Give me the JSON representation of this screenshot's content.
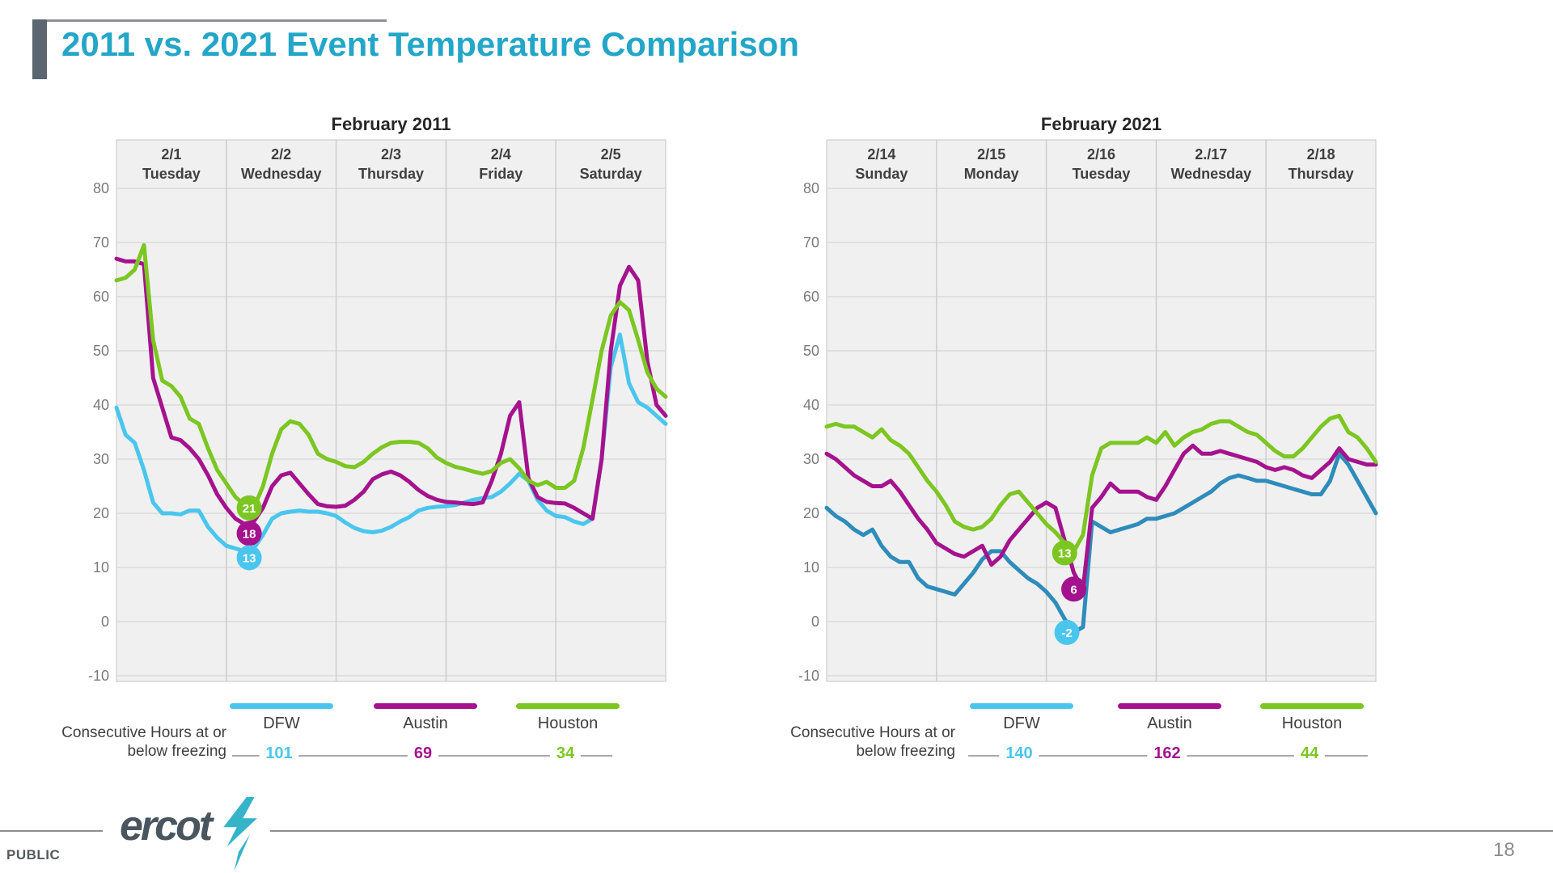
{
  "slide": {
    "title": "2011 vs. 2021 Event Temperature Comparison",
    "footer": {
      "classification": "PUBLIC",
      "page_number": "18",
      "logo_text": "ercot",
      "logo_icon": "lightning-bolt-icon"
    }
  },
  "colors": {
    "title_teal": "#23A6C8",
    "accent_bar_gray": "#5B6670",
    "footer_line_gray": "#8A9096",
    "dfw_cyan": "#4AC6EE",
    "austin_magenta": "#A5128E",
    "houston_green": "#7CC621",
    "dfw_2021_line_blue": "#2E8CBB",
    "plot_bg": "#F0F0F0",
    "grid": "#DBDBDB",
    "day_separator": "#CDCDCD",
    "plot_border": "#C4C4C4",
    "axis_text": "#7A7A7A",
    "label_text": "#3F3F3F"
  },
  "chart_data": [
    {
      "type": "line",
      "title": "February 2011",
      "ylim": [
        -10,
        89
      ],
      "yticks": [
        80,
        70,
        60,
        50,
        40,
        30,
        20,
        10,
        0,
        -10
      ],
      "x_span_hours": 120,
      "x_step_hours": 2,
      "grid": true,
      "days": [
        {
          "date": "2/1",
          "weekday": "Tuesday"
        },
        {
          "date": "2/2",
          "weekday": "Wednesday"
        },
        {
          "date": "2/3",
          "weekday": "Thursday"
        },
        {
          "date": "2/4",
          "weekday": "Friday"
        },
        {
          "date": "2/5",
          "weekday": "Saturday"
        }
      ],
      "series": [
        {
          "name": "DFW",
          "color": "#4AC6EE",
          "values": [
            39.5,
            34.5,
            33,
            28,
            22,
            20,
            20,
            19.8,
            20.5,
            20.5,
            17.5,
            15.5,
            14,
            13.5,
            13,
            13.5,
            16,
            19,
            20,
            20.3,
            20.5,
            20.3,
            20.3,
            20,
            19.5,
            18.3,
            17.3,
            16.7,
            16.5,
            16.8,
            17.5,
            18.5,
            19.3,
            20.5,
            21,
            21.2,
            21.3,
            21.5,
            22,
            22.5,
            22.8,
            23,
            24,
            25.5,
            27.3,
            26,
            22.5,
            20.5,
            19.5,
            19.3,
            18.5,
            18,
            19,
            30,
            47,
            53,
            44,
            40.5,
            39.5,
            38,
            36.5
          ]
        },
        {
          "name": "Austin",
          "color": "#A5128E",
          "values": [
            67,
            66.5,
            66.5,
            66,
            45,
            39.5,
            34,
            33.5,
            32,
            30,
            27,
            23.5,
            21,
            19,
            18,
            18.5,
            21,
            25,
            27,
            27.5,
            25.5,
            23.5,
            21.7,
            21.3,
            21.2,
            21.4,
            22.5,
            24,
            26.3,
            27.2,
            27.7,
            27,
            25.8,
            24.3,
            23.2,
            22.5,
            22.1,
            22,
            21.8,
            21.7,
            22,
            26,
            31,
            38,
            40.5,
            26.5,
            23,
            22.1,
            21.9,
            21.8,
            21,
            20,
            19,
            30,
            50,
            62,
            65.5,
            63,
            48,
            40,
            38
          ]
        },
        {
          "name": "Houston",
          "color": "#7CC621",
          "values": [
            63,
            63.5,
            65,
            69.5,
            52,
            44.5,
            43.5,
            41.5,
            37.5,
            36.5,
            32,
            28,
            25.5,
            23,
            21.5,
            21,
            25,
            31,
            35.5,
            37,
            36.5,
            34.5,
            31,
            30,
            29.5,
            28.7,
            28.5,
            29.5,
            31,
            32.2,
            33,
            33.2,
            33.2,
            33,
            32,
            30.3,
            29.3,
            28.6,
            28.2,
            27.7,
            27.3,
            27.8,
            29.3,
            30,
            28.3,
            26,
            25.2,
            25.8,
            24.7,
            24.7,
            26,
            32,
            41,
            50,
            56.5,
            59,
            57.5,
            52,
            46,
            43,
            41.5
          ]
        }
      ],
      "annotations": [
        {
          "series": "Houston",
          "label": "21",
          "value": 21,
          "hour": 29,
          "circle_value": 21,
          "color": "#7CC621"
        },
        {
          "series": "Austin",
          "label": "18",
          "value": 18,
          "hour": 29,
          "circle_value": 16.3,
          "color": "#A5128E"
        },
        {
          "series": "DFW",
          "label": "13",
          "value": 13,
          "hour": 29,
          "circle_value": 11.8,
          "color": "#4AC6EE"
        }
      ],
      "legend": [
        {
          "label": "DFW",
          "color": "#4AC6EE"
        },
        {
          "label": "Austin",
          "color": "#A5128E"
        },
        {
          "label": "Houston",
          "color": "#7CC621"
        }
      ],
      "consecutive_hours_caption": [
        "Consecutive Hours at or",
        "below freezing"
      ],
      "consecutive_hours": [
        {
          "series": "DFW",
          "value": "101",
          "color": "#4AC6EE"
        },
        {
          "series": "Austin",
          "value": "69",
          "color": "#A5128E"
        },
        {
          "series": "Houston",
          "value": "34",
          "color": "#7CC621"
        }
      ]
    },
    {
      "type": "line",
      "title": "February 2021",
      "ylim": [
        -10,
        89
      ],
      "yticks": [
        80,
        70,
        60,
        50,
        40,
        30,
        20,
        10,
        0,
        -10
      ],
      "x_span_hours": 120,
      "x_step_hours": 2,
      "grid": true,
      "days": [
        {
          "date": "2/14",
          "weekday": "Sunday"
        },
        {
          "date": "2/15",
          "weekday": "Monday"
        },
        {
          "date": "2/16",
          "weekday": "Tuesday"
        },
        {
          "date": "2./17",
          "weekday": "Wednesday"
        },
        {
          "date": "2/18",
          "weekday": "Thursday"
        }
      ],
      "series": [
        {
          "name": "DFW",
          "color": "#2E8CBB",
          "values": [
            21,
            19.5,
            18.5,
            17,
            16,
            17,
            14,
            12,
            11,
            11,
            8,
            6.5,
            6,
            5.5,
            5,
            7,
            9,
            11.5,
            13,
            13,
            11,
            9.5,
            8,
            7,
            5.5,
            3.5,
            0.5,
            -2,
            -1,
            18.5,
            17.5,
            16.5,
            17,
            17.5,
            18,
            19,
            19,
            19.5,
            20,
            21,
            22,
            23,
            24,
            25.5,
            26.5,
            27,
            26.5,
            26,
            26,
            25.5,
            25,
            24.5,
            24,
            23.5,
            23.5,
            26,
            31,
            29,
            26,
            23,
            20
          ]
        },
        {
          "name": "Austin",
          "color": "#A5128E",
          "values": [
            31,
            30,
            28.5,
            27,
            26,
            25,
            25,
            26,
            24,
            21.5,
            19,
            17,
            14.5,
            13.5,
            12.5,
            12,
            13,
            14,
            10.5,
            12,
            15,
            17,
            19,
            21,
            22,
            21,
            15,
            9,
            6,
            21,
            23,
            25.5,
            24,
            24,
            24,
            23,
            22.5,
            25,
            28,
            31,
            32.5,
            31,
            31,
            31.5,
            31,
            30.5,
            30,
            29.5,
            28.5,
            28,
            28.5,
            28,
            27,
            26.5,
            28,
            29.5,
            32,
            30,
            29.5,
            29,
            29
          ]
        },
        {
          "name": "Houston",
          "color": "#7CC621",
          "values": [
            36,
            36.5,
            36,
            36,
            35,
            34,
            35.5,
            33.5,
            32.5,
            31,
            28.5,
            26,
            24,
            21.5,
            18.5,
            17.5,
            17,
            17.5,
            19,
            21.5,
            23.5,
            24,
            22,
            20,
            18,
            16.5,
            14.5,
            13,
            16,
            27,
            32,
            33,
            33,
            33,
            33,
            34,
            33,
            35,
            32.5,
            34,
            35,
            35.5,
            36.5,
            37,
            37,
            36,
            35,
            34.5,
            33,
            31.5,
            30.5,
            30.5,
            32,
            34,
            36,
            37.5,
            38,
            35,
            34,
            32,
            29.5
          ]
        }
      ],
      "annotations": [
        {
          "series": "Houston",
          "label": "13",
          "value": 13,
          "hour": 52,
          "circle_value": 12.7,
          "color": "#7CC621"
        },
        {
          "series": "Austin",
          "label": "6",
          "value": 6,
          "hour": 54,
          "circle_value": 6,
          "color": "#A5128E"
        },
        {
          "series": "DFW",
          "label": "-2",
          "value": -2,
          "hour": 52.5,
          "circle_value": -2,
          "color": "#4AC6EE"
        }
      ],
      "legend": [
        {
          "label": "DFW",
          "color": "#4AC6EE"
        },
        {
          "label": "Austin",
          "color": "#A5128E"
        },
        {
          "label": "Houston",
          "color": "#7CC621"
        }
      ],
      "consecutive_hours_caption": [
        "Consecutive Hours at or",
        "below freezing"
      ],
      "consecutive_hours": [
        {
          "series": "DFW",
          "value": "140",
          "color": "#4AC6EE"
        },
        {
          "series": "Austin",
          "value": "162",
          "color": "#A5128E"
        },
        {
          "series": "Houston",
          "value": "44",
          "color": "#7CC621"
        }
      ]
    }
  ]
}
